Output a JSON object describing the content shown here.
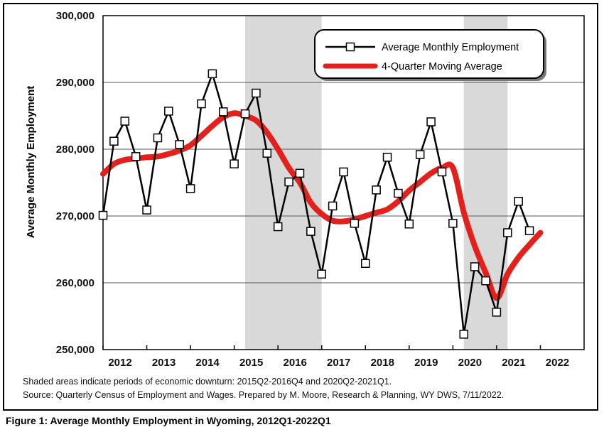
{
  "chart_data": {
    "type": "line",
    "ylabel": "Average Monthly Employment",
    "xlabel": "",
    "ylim": [
      250000,
      300000
    ],
    "yticks": [
      "250,000",
      "260,000",
      "270,000",
      "280,000",
      "290,000",
      "300,000"
    ],
    "xticks": [
      "2012",
      "2013",
      "2014",
      "2015",
      "2016",
      "2017",
      "2018",
      "2019",
      "2020",
      "2021",
      "2022"
    ],
    "xlim": [
      2012.0,
      2023.0
    ],
    "grid": "horizontal",
    "legend_position": "top-right",
    "shaded_periods": [
      [
        2015.25,
        2017.0
      ],
      [
        2020.25,
        2021.25
      ]
    ],
    "series": [
      {
        "name": "Average Monthly Employment",
        "color": "#000000",
        "marker": "square",
        "x": [
          2012.0,
          2012.25,
          2012.5,
          2012.75,
          2013.0,
          2013.25,
          2013.5,
          2013.75,
          2014.0,
          2014.25,
          2014.5,
          2014.75,
          2015.0,
          2015.25,
          2015.5,
          2015.75,
          2016.0,
          2016.25,
          2016.5,
          2016.75,
          2017.0,
          2017.25,
          2017.5,
          2017.75,
          2018.0,
          2018.25,
          2018.5,
          2018.75,
          2019.0,
          2019.25,
          2019.5,
          2019.75,
          2020.0,
          2020.25,
          2020.5,
          2020.75,
          2021.0,
          2021.25,
          2021.5,
          2021.75
        ],
        "values": [
          270100,
          281200,
          284200,
          278900,
          270900,
          281700,
          285700,
          280700,
          274100,
          286800,
          291300,
          285600,
          277800,
          285300,
          288400,
          279400,
          268400,
          275100,
          276400,
          267700,
          261300,
          271500,
          276600,
          268900,
          262900,
          273900,
          278800,
          273400,
          268800,
          279200,
          284100,
          276600,
          268900,
          252300,
          262400,
          260300,
          255600,
          267500,
          272200,
          267800
        ]
      },
      {
        "name": "4-Quarter Moving Average",
        "color": "#e3201b",
        "x": [
          2012.0,
          2012.25,
          2012.5,
          2012.75,
          2013.0,
          2013.25,
          2013.5,
          2013.75,
          2014.0,
          2014.25,
          2014.5,
          2014.75,
          2015.0,
          2015.25,
          2015.5,
          2015.75,
          2016.0,
          2016.25,
          2016.5,
          2016.75,
          2017.0,
          2017.25,
          2017.5,
          2017.75,
          2018.0,
          2018.25,
          2018.5,
          2018.75,
          2019.0,
          2019.25,
          2019.5,
          2019.75,
          2020.0,
          2020.25,
          2020.5,
          2020.75,
          2021.0,
          2021.25,
          2021.5,
          2021.75
        ],
        "values": [
          276300,
          277800,
          278400,
          278600,
          278800,
          278900,
          279300,
          279800,
          280600,
          282000,
          283500,
          284800,
          285400,
          285000,
          284300,
          282500,
          280000,
          277200,
          275000,
          272000,
          270300,
          269300,
          269200,
          269500,
          270000,
          270500,
          271000,
          272200,
          273800,
          275100,
          276400,
          277200,
          277200,
          270500,
          265500,
          261500,
          257700,
          261300,
          263800,
          265700
        ]
      }
    ],
    "moving_average_end": {
      "x": 2022.0,
      "value": 267500
    }
  },
  "notes": {
    "line1": "Shaded areas indicate periods of economic downturn: 2015Q2-2016Q4 and 2020Q2-2021Q1.",
    "line2": "Source: Quarterly Census of Employment and Wages. Prepared by M. Moore, Research & Planning, WY DWS, 7/11/2022."
  },
  "caption": "Figure 1: Average Monthly Employment in Wyoming, 2012Q1-2022Q1"
}
